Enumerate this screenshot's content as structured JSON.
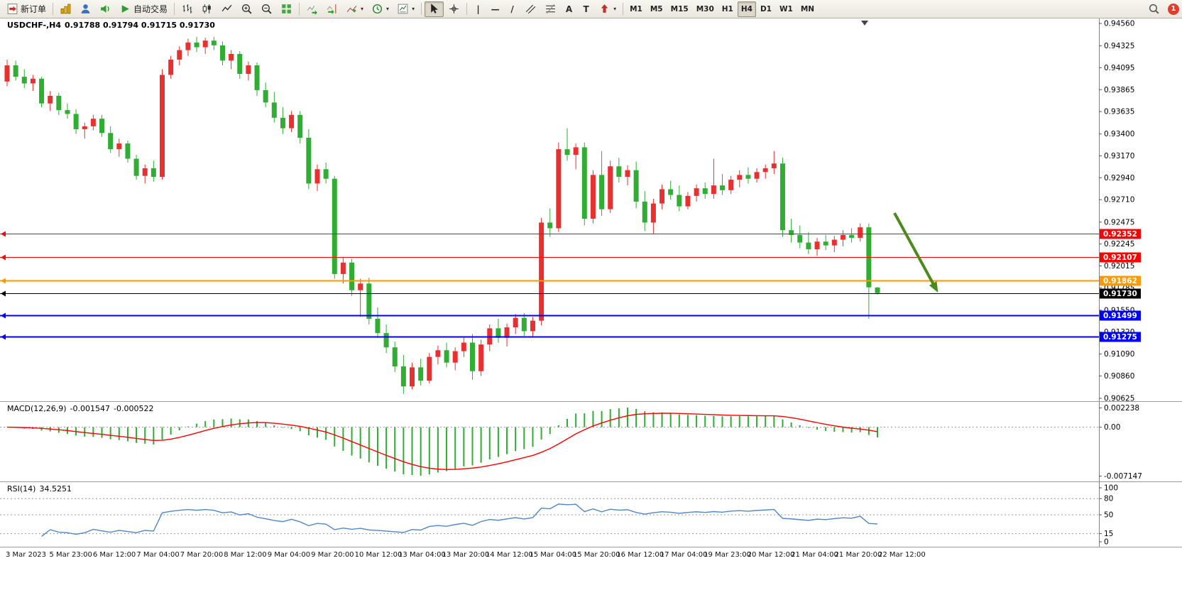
{
  "toolbar": {
    "new_order_label": "新订单",
    "autotrading_label": "自动交易",
    "glyphs": {
      "vline": "|",
      "hline": "—",
      "trendline": "/",
      "text_tool": "A",
      "label_tool": "T",
      "caret": "▾"
    },
    "timeframes": [
      {
        "label": "M1",
        "active": false
      },
      {
        "label": "M5",
        "active": false
      },
      {
        "label": "M15",
        "active": false
      },
      {
        "label": "M30",
        "active": false
      },
      {
        "label": "H1",
        "active": false
      },
      {
        "label": "H4",
        "active": true
      },
      {
        "label": "D1",
        "active": false
      },
      {
        "label": "W1",
        "active": false
      },
      {
        "label": "MN",
        "active": false
      }
    ],
    "notification_count": "1"
  },
  "chart": {
    "title_symbol": "USDCHF-,H4",
    "title_ohlc": "0.91788 0.91794 0.91715 0.91730"
  },
  "macd": {
    "label": "MACD(12,26,9)",
    "value_main": "-0.001547",
    "value_signal": "-0.000522",
    "axis_labels": [
      "0.002238",
      "0.00",
      "-0.007147"
    ],
    "params": {
      "fast": 12,
      "slow": 26,
      "signal": 9
    },
    "colors": {
      "histogram": "#2fae33",
      "signal": "#ff0000"
    }
  },
  "rsi": {
    "label": "RSI(14)",
    "value": "34.5251",
    "period": 14,
    "levels": [
      80,
      50,
      15
    ],
    "axis_labels": [
      "100",
      "80",
      "50",
      "15",
      "0"
    ],
    "color": "#4f87c7"
  },
  "time_axis": {
    "labels": [
      "3 Mar 2023",
      "5 Mar 23:00",
      "6 Mar 12:00",
      "7 Mar 04:00",
      "7 Mar 20:00",
      "8 Mar 12:00",
      "9 Mar 04:00",
      "9 Mar 20:00",
      "10 Mar 12:00",
      "13 Mar 04:00",
      "13 Mar 20:00",
      "14 Mar 12:00",
      "15 Mar 04:00",
      "15 Mar 20:00",
      "16 Mar 12:00",
      "17 Mar 04:00",
      "19 Mar 23:00",
      "20 Mar 12:00",
      "21 Mar 04:00",
      "21 Mar 20:00",
      "22 Mar 12:00"
    ]
  },
  "chart_data": {
    "type": "candlestick",
    "symbol": "USDCHF-",
    "timeframe": "H4",
    "price_axis": {
      "min": 0.90625,
      "max": 0.9456,
      "labels": [
        "0.94560",
        "0.94325",
        "0.94095",
        "0.93865",
        "0.93635",
        "0.93400",
        "0.93170",
        "0.92940",
        "0.92710",
        "0.92475",
        "0.92245",
        "0.92015",
        "0.91785",
        "0.91550",
        "0.91320",
        "0.91090",
        "0.90860",
        "0.90625"
      ]
    },
    "colors": {
      "up": "#e83030",
      "down": "#2fae33"
    },
    "candles": [
      [
        0.9395,
        0.9418,
        0.939,
        0.9412
      ],
      [
        0.9412,
        0.9417,
        0.9396,
        0.94
      ],
      [
        0.94,
        0.9408,
        0.9388,
        0.9393
      ],
      [
        0.9393,
        0.9402,
        0.9385,
        0.9398
      ],
      [
        0.9398,
        0.94,
        0.9368,
        0.9372
      ],
      [
        0.9372,
        0.9385,
        0.9364,
        0.938
      ],
      [
        0.938,
        0.9383,
        0.936,
        0.9365
      ],
      [
        0.9365,
        0.9372,
        0.9356,
        0.9361
      ],
      [
        0.9361,
        0.9366,
        0.934,
        0.9345
      ],
      [
        0.9345,
        0.9352,
        0.9335,
        0.9348
      ],
      [
        0.9348,
        0.936,
        0.9344,
        0.9356
      ],
      [
        0.9356,
        0.936,
        0.9337,
        0.9341
      ],
      [
        0.9341,
        0.9348,
        0.932,
        0.9324
      ],
      [
        0.9324,
        0.9335,
        0.9316,
        0.933
      ],
      [
        0.933,
        0.9333,
        0.931,
        0.9314
      ],
      [
        0.9314,
        0.9318,
        0.9292,
        0.9296
      ],
      [
        0.9296,
        0.9308,
        0.9288,
        0.9304
      ],
      [
        0.9304,
        0.9312,
        0.929,
        0.9295
      ],
      [
        0.9295,
        0.9408,
        0.9292,
        0.9402
      ],
      [
        0.9402,
        0.9422,
        0.9398,
        0.9418
      ],
      [
        0.9418,
        0.9432,
        0.9412,
        0.9428
      ],
      [
        0.9428,
        0.944,
        0.9422,
        0.9436
      ],
      [
        0.9436,
        0.9442,
        0.9426,
        0.9431
      ],
      [
        0.9431,
        0.9441,
        0.9424,
        0.9438
      ],
      [
        0.9438,
        0.9442,
        0.9428,
        0.9433
      ],
      [
        0.9433,
        0.9437,
        0.9412,
        0.9417
      ],
      [
        0.9417,
        0.9428,
        0.9408,
        0.9424
      ],
      [
        0.9424,
        0.9427,
        0.9398,
        0.9403
      ],
      [
        0.9403,
        0.9416,
        0.9396,
        0.9412
      ],
      [
        0.9412,
        0.9415,
        0.938,
        0.9386
      ],
      [
        0.9386,
        0.9394,
        0.9368,
        0.9373
      ],
      [
        0.9373,
        0.9384,
        0.9352,
        0.9357
      ],
      [
        0.9357,
        0.9368,
        0.934,
        0.9346
      ],
      [
        0.9346,
        0.9364,
        0.9342,
        0.936
      ],
      [
        0.936,
        0.9364,
        0.933,
        0.9336
      ],
      [
        0.9336,
        0.9345,
        0.9282,
        0.9288
      ],
      [
        0.9288,
        0.9308,
        0.928,
        0.9303
      ],
      [
        0.9303,
        0.931,
        0.9288,
        0.9293
      ],
      [
        0.9293,
        0.9296,
        0.9188,
        0.9193
      ],
      [
        0.9193,
        0.9211,
        0.9183,
        0.9205
      ],
      [
        0.9205,
        0.9209,
        0.917,
        0.9176
      ],
      [
        0.9176,
        0.9188,
        0.9148,
        0.9183
      ],
      [
        0.9183,
        0.9189,
        0.914,
        0.9146
      ],
      [
        0.9146,
        0.9158,
        0.9126,
        0.9131
      ],
      [
        0.9131,
        0.914,
        0.911,
        0.9116
      ],
      [
        0.9116,
        0.9122,
        0.909,
        0.9096
      ],
      [
        0.9096,
        0.9108,
        0.9067,
        0.9075
      ],
      [
        0.9075,
        0.91,
        0.9072,
        0.9095
      ],
      [
        0.9095,
        0.9104,
        0.9076,
        0.9081
      ],
      [
        0.9081,
        0.911,
        0.9078,
        0.9106
      ],
      [
        0.9106,
        0.9118,
        0.9098,
        0.9113
      ],
      [
        0.9113,
        0.9121,
        0.9095,
        0.91
      ],
      [
        0.91,
        0.9116,
        0.9092,
        0.9112
      ],
      [
        0.9112,
        0.9126,
        0.9106,
        0.9121
      ],
      [
        0.9121,
        0.913,
        0.9082,
        0.9091
      ],
      [
        0.9091,
        0.9124,
        0.9086,
        0.9119
      ],
      [
        0.9119,
        0.914,
        0.9112,
        0.9136
      ],
      [
        0.9136,
        0.9146,
        0.9121,
        0.9126
      ],
      [
        0.9126,
        0.9141,
        0.9117,
        0.9137
      ],
      [
        0.9137,
        0.9151,
        0.913,
        0.9147
      ],
      [
        0.9147,
        0.9152,
        0.9128,
        0.9133
      ],
      [
        0.9133,
        0.9148,
        0.9127,
        0.9144
      ],
      [
        0.9144,
        0.9252,
        0.9139,
        0.9247
      ],
      [
        0.9247,
        0.9262,
        0.9232,
        0.9241
      ],
      [
        0.9241,
        0.9331,
        0.9237,
        0.9324
      ],
      [
        0.9324,
        0.9346,
        0.9312,
        0.9318
      ],
      [
        0.9318,
        0.933,
        0.9303,
        0.9326
      ],
      [
        0.9326,
        0.9331,
        0.9244,
        0.9251
      ],
      [
        0.9251,
        0.9302,
        0.9246,
        0.9297
      ],
      [
        0.9297,
        0.9322,
        0.9254,
        0.9261
      ],
      [
        0.9261,
        0.9312,
        0.9257,
        0.9306
      ],
      [
        0.9306,
        0.9315,
        0.9289,
        0.9295
      ],
      [
        0.9295,
        0.9307,
        0.9286,
        0.9302
      ],
      [
        0.9302,
        0.9311,
        0.9262,
        0.9269
      ],
      [
        0.9269,
        0.928,
        0.9238,
        0.9247
      ],
      [
        0.9247,
        0.9272,
        0.9235,
        0.9267
      ],
      [
        0.9267,
        0.9287,
        0.9261,
        0.9282
      ],
      [
        0.9282,
        0.9291,
        0.9271,
        0.9276
      ],
      [
        0.9276,
        0.9286,
        0.9259,
        0.9264
      ],
      [
        0.9264,
        0.9279,
        0.9261,
        0.9275
      ],
      [
        0.9275,
        0.9287,
        0.9269,
        0.9283
      ],
      [
        0.9283,
        0.9289,
        0.9272,
        0.9277
      ],
      [
        0.9277,
        0.9314,
        0.9272,
        0.9286
      ],
      [
        0.9286,
        0.9298,
        0.9276,
        0.9281
      ],
      [
        0.9281,
        0.9296,
        0.9277,
        0.9292
      ],
      [
        0.9292,
        0.9302,
        0.9284,
        0.9297
      ],
      [
        0.9297,
        0.9305,
        0.9288,
        0.9293
      ],
      [
        0.9293,
        0.9304,
        0.9289,
        0.93
      ],
      [
        0.93,
        0.9308,
        0.9293,
        0.9304
      ],
      [
        0.9304,
        0.9322,
        0.9298,
        0.9309
      ],
      [
        0.9309,
        0.9315,
        0.9232,
        0.9239
      ],
      [
        0.9239,
        0.9251,
        0.9226,
        0.9234
      ],
      [
        0.9234,
        0.9244,
        0.922,
        0.9226
      ],
      [
        0.9226,
        0.9237,
        0.9214,
        0.9219
      ],
      [
        0.9219,
        0.9231,
        0.9212,
        0.9227
      ],
      [
        0.9227,
        0.9234,
        0.9218,
        0.9223
      ],
      [
        0.9223,
        0.9233,
        0.9216,
        0.9229
      ],
      [
        0.9229,
        0.9239,
        0.9222,
        0.9234
      ],
      [
        0.9234,
        0.9241,
        0.9226,
        0.9231
      ],
      [
        0.9231,
        0.9246,
        0.9227,
        0.9242
      ],
      [
        0.9242,
        0.9246,
        0.9146,
        0.9179
      ],
      [
        0.91788,
        0.91794,
        0.91715,
        0.9173
      ]
    ],
    "levels": [
      {
        "name": "resistance-1",
        "price": 0.92352,
        "label": "0.92352",
        "color": "#ff0000",
        "width": 1
      },
      {
        "name": "resistance-2",
        "price": 0.92107,
        "label": "0.92107",
        "color": "#ff0000",
        "width": 1
      },
      {
        "name": "pivot-line",
        "price": 0.91862,
        "label": "0.91862",
        "color": "#ff9900",
        "width": 2
      },
      {
        "name": "current-price",
        "price": 0.9173,
        "label": "0.91730",
        "color": "#000000",
        "width": 1
      },
      {
        "name": "support-1",
        "price": 0.91499,
        "label": "0.91499",
        "color": "#0000ff",
        "width": 2
      },
      {
        "name": "support-2",
        "price": 0.91275,
        "label": "0.91275",
        "color": "#0000ff",
        "width": 2
      }
    ],
    "arrow": {
      "from": [
        1260,
        274
      ],
      "to": [
        1318,
        380
      ],
      "color": "#4b8b1d"
    }
  }
}
